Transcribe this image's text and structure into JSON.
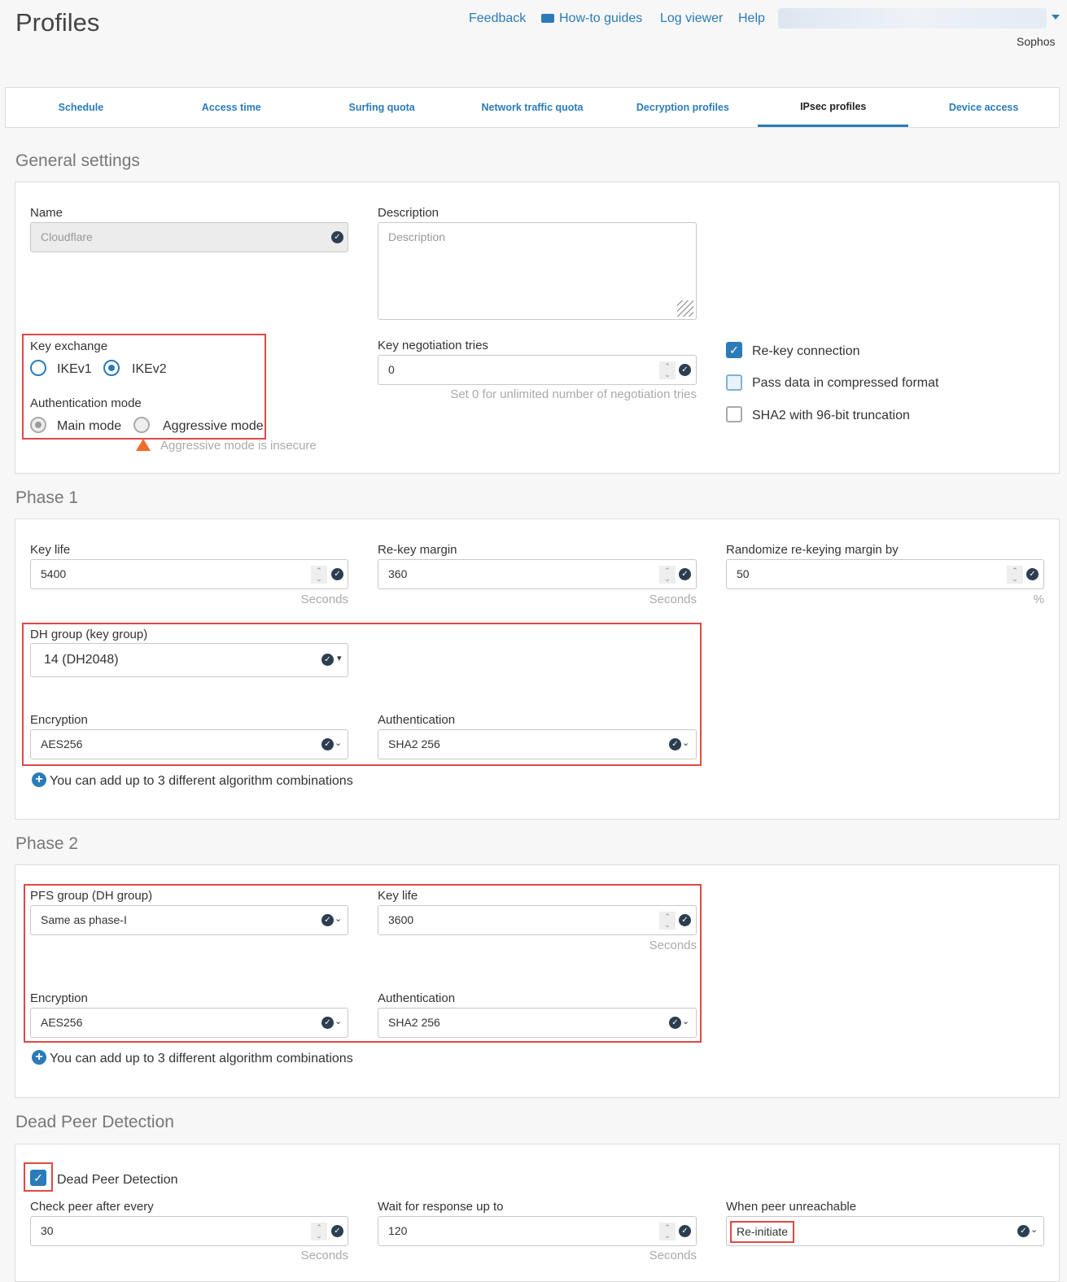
{
  "header": {
    "title": "Profiles",
    "links": [
      "Feedback",
      "How-to guides",
      "Log viewer",
      "Help"
    ],
    "user": "Sophos"
  },
  "tabs": [
    "Schedule",
    "Access time",
    "Surfing quota",
    "Network traffic quota",
    "Decryption profiles",
    "IPsec profiles",
    "Device access"
  ],
  "active_tab": "IPsec profiles",
  "general": {
    "heading": "General settings",
    "name_label": "Name",
    "name_value": "Cloudflare",
    "desc_label": "Description",
    "desc_placeholder": "Description",
    "key_exchange_label": "Key exchange",
    "ikev1": "IKEv1",
    "ikev2": "IKEv2",
    "key_exchange_selected": "IKEv2",
    "auth_mode_label": "Authentication mode",
    "main_mode": "Main mode",
    "aggressive_mode": "Aggressive mode",
    "auth_mode_selected": "Main mode",
    "aggressive_warning": "Aggressive mode is insecure",
    "tries_label": "Key negotiation tries",
    "tries_value": "0",
    "tries_hint": "Set 0 for unlimited number of negotiation tries",
    "rekey": "Re-key connection",
    "rekey_checked": true,
    "compress": "Pass data in compressed format",
    "compress_checked": false,
    "sha2": "SHA2 with 96-bit truncation",
    "sha2_checked": false
  },
  "phase1": {
    "heading": "Phase 1",
    "keylife_label": "Key life",
    "keylife": "5400",
    "rekey_margin_label": "Re-key margin",
    "rekey_margin": "360",
    "random_label": "Randomize re-keying margin by",
    "random": "50",
    "seconds": "Seconds",
    "percent": "%",
    "dh_label": "DH group (key group)",
    "dh": "14 (DH2048)",
    "enc_label": "Encryption",
    "enc": "AES256",
    "auth_label": "Authentication",
    "auth": "SHA2 256",
    "add_note": "You can add up to 3 different algorithm combinations"
  },
  "phase2": {
    "heading": "Phase 2",
    "pfs_label": "PFS group (DH group)",
    "pfs": "Same as phase-I",
    "keylife_label": "Key life",
    "keylife": "3600",
    "seconds": "Seconds",
    "enc_label": "Encryption",
    "enc": "AES256",
    "auth_label": "Authentication",
    "auth": "SHA2 256",
    "add_note": "You can add up to 3 different algorithm combinations"
  },
  "dpd": {
    "heading": "Dead Peer Detection",
    "checkbox": "Dead Peer Detection",
    "checked": true,
    "check_label": "Check peer after every",
    "check": "30",
    "wait_label": "Wait for response up to",
    "wait": "120",
    "seconds": "Seconds",
    "unreach_label": "When peer unreachable",
    "unreach": "Re-initiate"
  }
}
